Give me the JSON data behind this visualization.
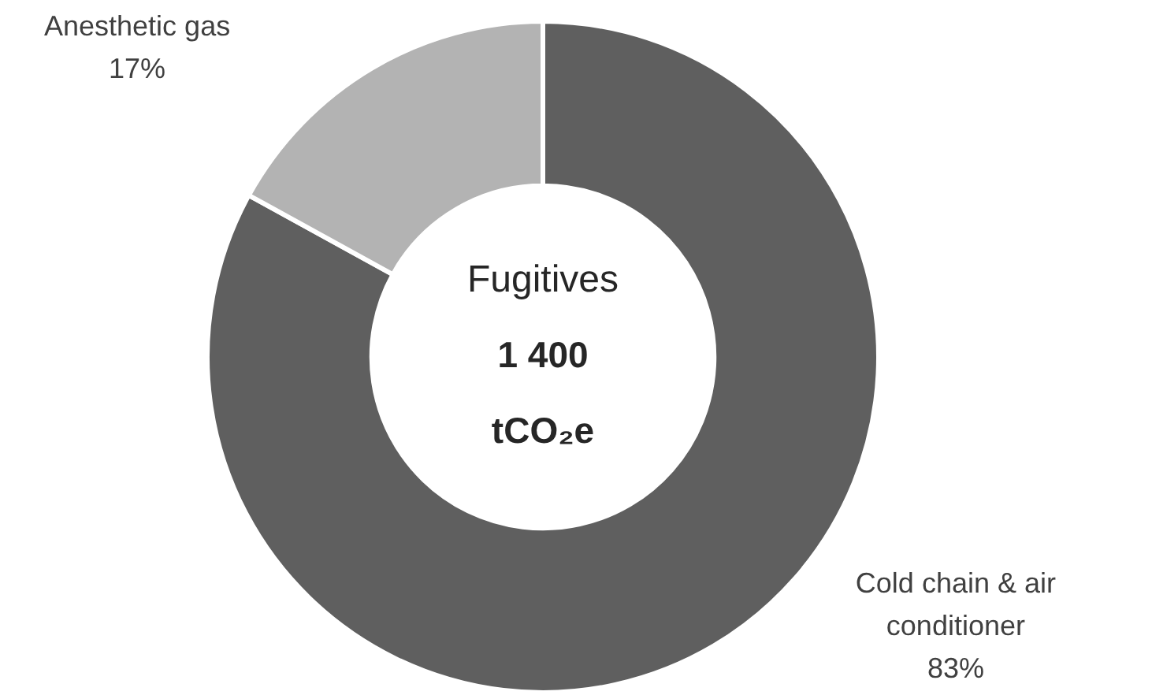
{
  "chart_data": {
    "type": "donut",
    "title": "Fugitives",
    "annotations": [
      "1 400",
      "tCO₂e"
    ],
    "categories": [
      "Cold chain & air conditioner",
      "Anesthetic gas"
    ],
    "values": [
      83,
      17
    ],
    "colors": [
      "#5f5f5f",
      "#b3b3b3"
    ],
    "value_labels": [
      "83%",
      "17%"
    ]
  }
}
